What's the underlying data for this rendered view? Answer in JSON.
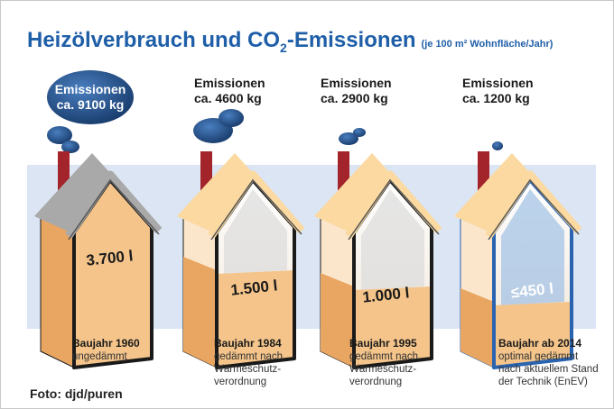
{
  "title": {
    "main": "Heizölverbrauch und CO",
    "sub": "2",
    "rest": "-Emissionen",
    "note": "(je 100 m² Wohnfläche/Jahr)"
  },
  "houses": [
    {
      "emission": [
        "Emissionen",
        "ca. 9100 kg"
      ],
      "volume": "3.700 l",
      "year": "Baujahr 1960",
      "description": [
        "ungedämmt"
      ]
    },
    {
      "emission": [
        "Emissionen",
        "ca. 4600 kg"
      ],
      "volume": "1.500 l",
      "year": "Baujahr 1984",
      "description": [
        "gedämmt nach",
        "Wärmeschutz-",
        "verordnung"
      ]
    },
    {
      "emission": [
        "Emissionen",
        "ca. 2900 kg"
      ],
      "volume": "1.000 l",
      "year": "Baujahr 1995",
      "description": [
        "gedämmt nach",
        "Wärmeschutz-",
        "verordnung"
      ]
    },
    {
      "emission": [
        "Emissionen",
        "ca. 1200 kg"
      ],
      "volume": "≤450 l",
      "year": "Baujahr ab 2014",
      "description": [
        "optimal gedämmt",
        "nach aktuellem Stand",
        "der Technik (EnEV)"
      ]
    }
  ],
  "credit": "Foto: djd/puren"
}
